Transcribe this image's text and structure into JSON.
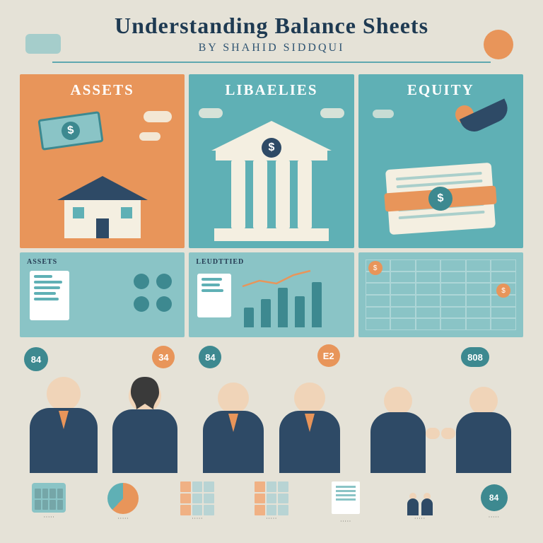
{
  "colors": {
    "page_bg": "#e5e2d7",
    "title": "#1e3a52",
    "subtitle": "#2f5472",
    "rule": "#5fa8b0",
    "orange": "#e8955a",
    "orange_light": "#f0b184",
    "teal": "#5fb0b5",
    "teal_light": "#8ac4c6",
    "teal_dark": "#3d8990",
    "cream": "#f4efe1",
    "navy": "#2e4a66",
    "navy_dark": "#243a52",
    "skin": "#f0d4b8",
    "hair": "#3a3a3a",
    "white": "#ffffff",
    "grid_tile": "#b8d4d4"
  },
  "header": {
    "title": "Understanding Balance Sheets",
    "subtitle": "BY SHAHID SIDDQUI"
  },
  "columns": {
    "assets": {
      "label": "ASSETS",
      "bg": "#e8955a"
    },
    "liabilities": {
      "label": "LIBAELIES",
      "bg": "#5fb0b5"
    },
    "equity": {
      "label": "EQUITY",
      "bg": "#5fb0b5"
    }
  },
  "row2": {
    "panel1_label": "ASSETS",
    "panel2_label": "LEUDTTIED",
    "bars": [
      28,
      40,
      56,
      44,
      64
    ],
    "bar_color": "#3d8990"
  },
  "people": {
    "bubbles": [
      "84",
      "34",
      "84",
      "E2",
      "808"
    ]
  },
  "strip": {
    "pie_slice": 62,
    "end_label": "84"
  }
}
